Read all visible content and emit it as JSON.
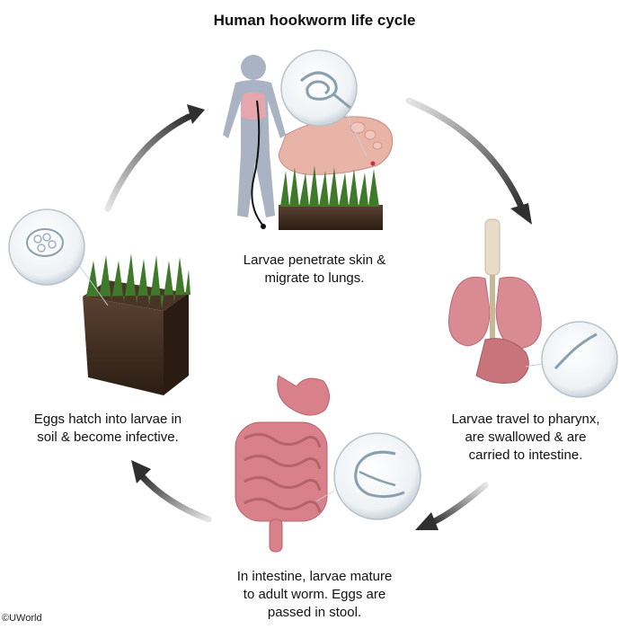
{
  "title": "Human hookworm life cycle",
  "stages": {
    "lungs": {
      "line1": "Larvae penetrate skin &",
      "line2": "migrate to lungs."
    },
    "pharynx": {
      "line1": "Larvae travel to pharynx,",
      "line2": "are swallowed & are",
      "line3": "carried to intestine."
    },
    "intestine": {
      "line1": "In intestine, larvae mature",
      "line2": "to adult worm. Eggs are",
      "line3": "passed in stool."
    },
    "soil": {
      "line1": "Eggs hatch into larvae in",
      "line2": "soil & become infective."
    }
  },
  "credit": "©UWorld",
  "colors": {
    "arrow": "#3a3a3a",
    "grass": "#3f7a2a",
    "soil": "#3b2a1e",
    "organ": "#d97a82",
    "skin": "#e8b4a8",
    "silhouette": "#a9b3c3"
  }
}
